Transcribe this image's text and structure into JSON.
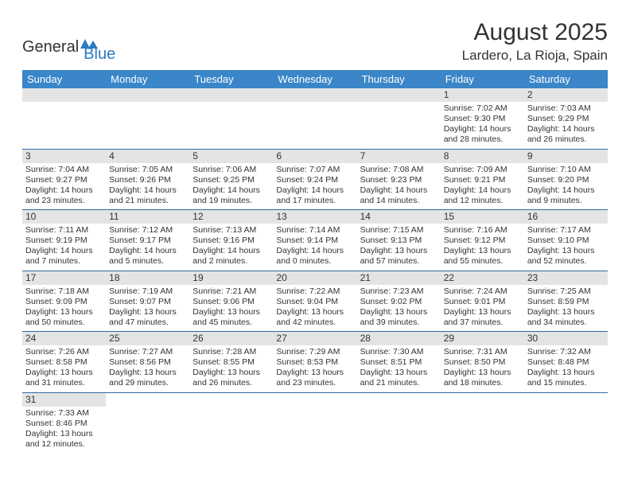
{
  "logo": {
    "general": "General",
    "blue": "Blue"
  },
  "title": "August 2025",
  "location": "Lardero, La Rioja, Spain",
  "weekday_labels": [
    "Sunday",
    "Monday",
    "Tuesday",
    "Wednesday",
    "Thursday",
    "Friday",
    "Saturday"
  ],
  "colors": {
    "header_bg": "#3a86c8",
    "header_text": "#ffffff",
    "daynum_bg": "#e4e4e4",
    "border": "#2f6aa3",
    "logo_blue": "#2b7bbf"
  },
  "first_weekday_index": 5,
  "days": [
    {
      "n": 1,
      "sunrise": "7:02 AM",
      "sunset": "9:30 PM",
      "daylight": "14 hours and 28 minutes."
    },
    {
      "n": 2,
      "sunrise": "7:03 AM",
      "sunset": "9:29 PM",
      "daylight": "14 hours and 26 minutes."
    },
    {
      "n": 3,
      "sunrise": "7:04 AM",
      "sunset": "9:27 PM",
      "daylight": "14 hours and 23 minutes."
    },
    {
      "n": 4,
      "sunrise": "7:05 AM",
      "sunset": "9:26 PM",
      "daylight": "14 hours and 21 minutes."
    },
    {
      "n": 5,
      "sunrise": "7:06 AM",
      "sunset": "9:25 PM",
      "daylight": "14 hours and 19 minutes."
    },
    {
      "n": 6,
      "sunrise": "7:07 AM",
      "sunset": "9:24 PM",
      "daylight": "14 hours and 17 minutes."
    },
    {
      "n": 7,
      "sunrise": "7:08 AM",
      "sunset": "9:23 PM",
      "daylight": "14 hours and 14 minutes."
    },
    {
      "n": 8,
      "sunrise": "7:09 AM",
      "sunset": "9:21 PM",
      "daylight": "14 hours and 12 minutes."
    },
    {
      "n": 9,
      "sunrise": "7:10 AM",
      "sunset": "9:20 PM",
      "daylight": "14 hours and 9 minutes."
    },
    {
      "n": 10,
      "sunrise": "7:11 AM",
      "sunset": "9:19 PM",
      "daylight": "14 hours and 7 minutes."
    },
    {
      "n": 11,
      "sunrise": "7:12 AM",
      "sunset": "9:17 PM",
      "daylight": "14 hours and 5 minutes."
    },
    {
      "n": 12,
      "sunrise": "7:13 AM",
      "sunset": "9:16 PM",
      "daylight": "14 hours and 2 minutes."
    },
    {
      "n": 13,
      "sunrise": "7:14 AM",
      "sunset": "9:14 PM",
      "daylight": "14 hours and 0 minutes."
    },
    {
      "n": 14,
      "sunrise": "7:15 AM",
      "sunset": "9:13 PM",
      "daylight": "13 hours and 57 minutes."
    },
    {
      "n": 15,
      "sunrise": "7:16 AM",
      "sunset": "9:12 PM",
      "daylight": "13 hours and 55 minutes."
    },
    {
      "n": 16,
      "sunrise": "7:17 AM",
      "sunset": "9:10 PM",
      "daylight": "13 hours and 52 minutes."
    },
    {
      "n": 17,
      "sunrise": "7:18 AM",
      "sunset": "9:09 PM",
      "daylight": "13 hours and 50 minutes."
    },
    {
      "n": 18,
      "sunrise": "7:19 AM",
      "sunset": "9:07 PM",
      "daylight": "13 hours and 47 minutes."
    },
    {
      "n": 19,
      "sunrise": "7:21 AM",
      "sunset": "9:06 PM",
      "daylight": "13 hours and 45 minutes."
    },
    {
      "n": 20,
      "sunrise": "7:22 AM",
      "sunset": "9:04 PM",
      "daylight": "13 hours and 42 minutes."
    },
    {
      "n": 21,
      "sunrise": "7:23 AM",
      "sunset": "9:02 PM",
      "daylight": "13 hours and 39 minutes."
    },
    {
      "n": 22,
      "sunrise": "7:24 AM",
      "sunset": "9:01 PM",
      "daylight": "13 hours and 37 minutes."
    },
    {
      "n": 23,
      "sunrise": "7:25 AM",
      "sunset": "8:59 PM",
      "daylight": "13 hours and 34 minutes."
    },
    {
      "n": 24,
      "sunrise": "7:26 AM",
      "sunset": "8:58 PM",
      "daylight": "13 hours and 31 minutes."
    },
    {
      "n": 25,
      "sunrise": "7:27 AM",
      "sunset": "8:56 PM",
      "daylight": "13 hours and 29 minutes."
    },
    {
      "n": 26,
      "sunrise": "7:28 AM",
      "sunset": "8:55 PM",
      "daylight": "13 hours and 26 minutes."
    },
    {
      "n": 27,
      "sunrise": "7:29 AM",
      "sunset": "8:53 PM",
      "daylight": "13 hours and 23 minutes."
    },
    {
      "n": 28,
      "sunrise": "7:30 AM",
      "sunset": "8:51 PM",
      "daylight": "13 hours and 21 minutes."
    },
    {
      "n": 29,
      "sunrise": "7:31 AM",
      "sunset": "8:50 PM",
      "daylight": "13 hours and 18 minutes."
    },
    {
      "n": 30,
      "sunrise": "7:32 AM",
      "sunset": "8:48 PM",
      "daylight": "13 hours and 15 minutes."
    },
    {
      "n": 31,
      "sunrise": "7:33 AM",
      "sunset": "8:46 PM",
      "daylight": "13 hours and 12 minutes."
    }
  ],
  "labels": {
    "sunrise": "Sunrise: ",
    "sunset": "Sunset: ",
    "daylight": "Daylight: "
  }
}
